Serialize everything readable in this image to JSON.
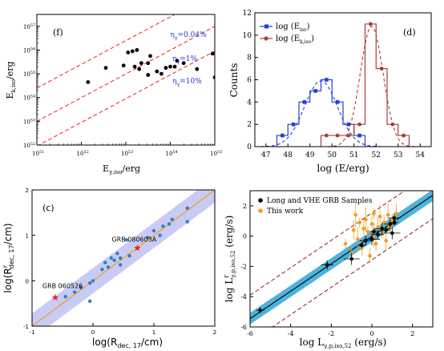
{
  "chart_data": [
    {
      "type": "scatter",
      "panel_label": "(f)",
      "xlabel_main": "E",
      "xlabel_sub": "γ,iso",
      "xlabel_tail": "/erg",
      "ylabel_main": "E",
      "ylabel_sub": "k,iso",
      "ylabel_tail": "/erg",
      "log_x": true,
      "log_y": true,
      "xlim": [
        51,
        55
      ],
      "ylim": [
        52,
        57.5
      ],
      "x_ticks": [
        {
          "v": 51,
          "base": "10",
          "exp": "51"
        },
        {
          "v": 52,
          "base": "10",
          "exp": "52"
        },
        {
          "v": 53,
          "base": "10",
          "exp": "53"
        },
        {
          "v": 54,
          "base": "10",
          "exp": "54"
        },
        {
          "v": 55,
          "base": "10",
          "exp": "55"
        }
      ],
      "y_ticks": [
        {
          "v": 52,
          "base": "10",
          "exp": "52"
        },
        {
          "v": 53,
          "base": "10",
          "exp": "53"
        },
        {
          "v": 54,
          "base": "10",
          "exp": "54"
        },
        {
          "v": 55,
          "base": "10",
          "exp": "55"
        },
        {
          "v": 56,
          "base": "10",
          "exp": "56"
        },
        {
          "v": 57,
          "base": "10",
          "exp": "57"
        }
      ],
      "efficiency_lines": [
        {
          "label_main": "η",
          "label_sub": "γ",
          "label_tail": "=0.04%",
          "eta": 0.0004
        },
        {
          "label_main": "η",
          "label_sub": "γ",
          "label_tail": "=1%",
          "eta": 0.01
        },
        {
          "label_main": "η",
          "label_sub": "γ",
          "label_tail": "=10%",
          "eta": 0.1
        }
      ],
      "points_log": [
        [
          52.15,
          54.65
        ],
        [
          52.55,
          55.25
        ],
        [
          52.95,
          55.35
        ],
        [
          53.05,
          55.9
        ],
        [
          53.15,
          55.95
        ],
        [
          53.25,
          56.0
        ],
        [
          53.2,
          55.3
        ],
        [
          53.3,
          55.2
        ],
        [
          53.35,
          55.45
        ],
        [
          53.5,
          55.45
        ],
        [
          53.5,
          54.95
        ],
        [
          53.55,
          55.75
        ],
        [
          53.7,
          55.1
        ],
        [
          53.8,
          55.0
        ],
        [
          53.9,
          55.25
        ],
        [
          54.0,
          55.3
        ],
        [
          54.1,
          55.3
        ],
        [
          54.15,
          55.55
        ],
        [
          54.3,
          55.45
        ],
        [
          54.6,
          55.2
        ],
        [
          54.95,
          55.85
        ],
        [
          55.0,
          54.85
        ]
      ],
      "color": "#000000",
      "line_color": "#e8231f",
      "label_color": "#2b36d9"
    },
    {
      "type": "bar",
      "panel_label": "(d)",
      "xlabel": "log (E/erg)",
      "ylabel": "Counts",
      "xlim": [
        46.5,
        54.5
      ],
      "ylim": [
        0,
        12
      ],
      "x_ticks": [
        "47",
        "48",
        "49",
        "50",
        "51",
        "52",
        "53",
        "54"
      ],
      "y_ticks": [
        "0",
        "2",
        "4",
        "6",
        "8",
        "10",
        "12"
      ],
      "legend_position": "top-left",
      "series": [
        {
          "legend_main": "log (E",
          "legend_sub": "iso",
          "legend_tail": ")",
          "color": "#1f3fd9",
          "bin_edges": [
            47.5,
            48,
            48.5,
            49,
            49.5,
            50,
            50.5,
            51,
            51.5
          ],
          "counts": [
            1,
            2,
            4,
            5,
            6,
            4,
            2,
            1
          ],
          "fit_mean": 49.5,
          "fit_sigma": 0.75,
          "fit_amp": 5.9
        },
        {
          "legend_main": "log (E",
          "legend_sub": "k,iso",
          "legend_tail": ")",
          "color": "#b03a3a",
          "bin_edges": [
            49.5,
            50,
            50.5,
            51,
            51.5,
            52,
            52.5,
            53,
            53.5
          ],
          "counts": [
            1,
            1,
            1,
            2,
            11,
            7,
            2,
            1
          ],
          "fit_mean": 51.8,
          "fit_sigma": 0.52,
          "fit_amp": 10.8
        }
      ]
    },
    {
      "type": "scatter",
      "panel_label": "(c)",
      "xlabel_main": "log(R",
      "xlabel_sub": "dec, 17",
      "xlabel_tail": "/cm)",
      "ylabel_main": "log(R",
      "ylabel_sup": "r",
      "ylabel_sub": "dec, 17",
      "ylabel_tail": "/cm)",
      "xlim": [
        -1,
        2
      ],
      "ylim": [
        -1,
        2
      ],
      "x_ticks": [
        "-1",
        "0",
        "1",
        "2"
      ],
      "y_ticks": [
        "-1",
        "0",
        "1",
        "2"
      ],
      "fit_line": [
        [
          -1,
          -1.0
        ],
        [
          2,
          2.0
        ]
      ],
      "band_halfwidth": 0.28,
      "points": [
        [
          -0.45,
          -0.35
        ],
        [
          -0.3,
          -0.25
        ],
        [
          -0.2,
          -0.15
        ],
        [
          -0.05,
          -0.45
        ],
        [
          -0.05,
          -0.05
        ],
        [
          0.0,
          0.0
        ],
        [
          0.15,
          0.25
        ],
        [
          0.2,
          0.4
        ],
        [
          0.25,
          0.3
        ],
        [
          0.3,
          0.5
        ],
        [
          0.35,
          0.45
        ],
        [
          0.4,
          0.6
        ],
        [
          0.45,
          0.35
        ],
        [
          0.45,
          0.5
        ],
        [
          0.55,
          0.9
        ],
        [
          0.6,
          0.55
        ],
        [
          0.9,
          0.95
        ],
        [
          1.0,
          1.1
        ],
        [
          1.1,
          1.0
        ],
        [
          1.15,
          1.2
        ],
        [
          1.25,
          1.25
        ],
        [
          1.3,
          1.35
        ],
        [
          1.55,
          1.6
        ],
        [
          1.55,
          1.3
        ]
      ],
      "stars": [
        {
          "x": -0.62,
          "y": -0.37,
          "label": "GRB 060526"
        },
        {
          "x": 0.73,
          "y": 0.72,
          "label": "GRB 080603A"
        }
      ],
      "point_color": "#2e7fc6",
      "star_color": "#e8231f",
      "line_color": "#f0a020",
      "band_color": "#9aa0ee"
    },
    {
      "type": "scatter",
      "panel_label": "",
      "xlabel_main": "log L",
      "xlabel_sub": "γ,p,iso,52",
      "xlabel_tail": " (erg/s)",
      "ylabel_main": "log L",
      "ylabel_sup": "r",
      "ylabel_sub": "γ,p,iso,52",
      "ylabel_tail": " (erg/s)",
      "xlim": [
        -6,
        3
      ],
      "ylim": [
        -6,
        3
      ],
      "x_ticks": [
        "-6",
        "-4",
        "-2",
        "0",
        "2"
      ],
      "y_ticks": [
        "-6",
        "-4",
        "-2",
        "0",
        "2"
      ],
      "legend": [
        "Long and VHE GRB Samples",
        "This work"
      ],
      "legend_position": "top-left",
      "fit_line": [
        [
          -6,
          -5.45
        ],
        [
          3,
          2.7
        ]
      ],
      "band_halfwidth": 0.38,
      "dashed_offset": 1.55,
      "black_points": [
        [
          -5.5,
          -4.9
        ],
        [
          -2.2,
          -1.9
        ],
        [
          -1.0,
          -1.5
        ],
        [
          -0.5,
          -0.6
        ],
        [
          -0.3,
          -0.3
        ],
        [
          0.0,
          -0.2
        ],
        [
          0.1,
          0.3
        ],
        [
          0.3,
          0.1
        ],
        [
          0.5,
          0.5
        ],
        [
          0.7,
          0.4
        ],
        [
          0.9,
          0.8
        ],
        [
          1.0,
          0.2
        ],
        [
          1.1,
          0.9
        ],
        [
          1.1,
          1.2
        ]
      ],
      "orange_points": [
        [
          -1.3,
          -0.5
        ],
        [
          -1.0,
          -1.1
        ],
        [
          -0.9,
          0.4
        ],
        [
          -0.7,
          -0.2
        ],
        [
          -0.6,
          0.9
        ],
        [
          -0.5,
          -0.8
        ],
        [
          -0.4,
          0.5
        ],
        [
          -0.3,
          1.1
        ],
        [
          -0.2,
          0.3
        ],
        [
          -0.1,
          -1.3
        ],
        [
          0.0,
          0.8
        ],
        [
          0.1,
          0.1
        ],
        [
          0.1,
          1.5
        ],
        [
          0.2,
          -0.5
        ],
        [
          0.3,
          0.6
        ],
        [
          0.4,
          1.3
        ],
        [
          0.5,
          0.2
        ],
        [
          0.6,
          0.9
        ],
        [
          0.7,
          -0.3
        ],
        [
          0.8,
          1.4
        ],
        [
          0.9,
          0.6
        ],
        [
          1.0,
          1.0
        ],
        [
          1.2,
          1.5
        ],
        [
          -0.8,
          1.4
        ]
      ],
      "black_color": "#000000",
      "orange_color": "#f39c2a",
      "line_color": "#111111",
      "band_color": "#2fa6d6",
      "dash_color": "#8b1a1a"
    }
  ]
}
